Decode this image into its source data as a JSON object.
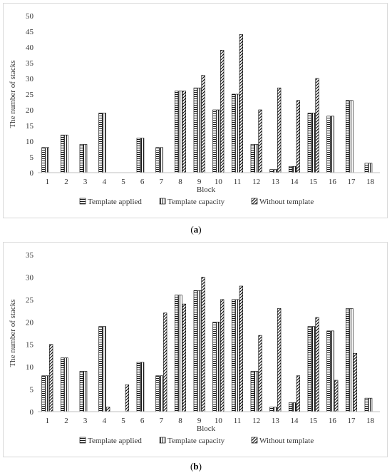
{
  "chart_data": [
    {
      "type": "bar",
      "panel": "a",
      "caption_letter": "a",
      "xlabel": "Block",
      "ylabel": "The number of stacks",
      "ylim": [
        0,
        50
      ],
      "yticks": [
        0,
        5,
        10,
        15,
        20,
        25,
        30,
        35,
        40,
        45,
        50
      ],
      "grid": false,
      "legend_position": "bottom",
      "categories": [
        "1",
        "2",
        "3",
        "4",
        "5",
        "6",
        "7",
        "8",
        "9",
        "10",
        "11",
        "12",
        "13",
        "14",
        "15",
        "16",
        "17",
        "18"
      ],
      "series": [
        {
          "name": "Template applied",
          "pattern": "horizontal",
          "values": [
            8,
            12,
            9,
            19,
            0,
            11,
            8,
            26,
            27,
            20,
            25,
            9,
            1,
            2,
            19,
            18,
            23,
            3
          ]
        },
        {
          "name": "Template capacity",
          "pattern": "vertical",
          "values": [
            8,
            12,
            9,
            19,
            0,
            11,
            8,
            26,
            27,
            20,
            25,
            9,
            1,
            2,
            19,
            18,
            23,
            3
          ]
        },
        {
          "name": "Without template",
          "pattern": "diagonal",
          "values": [
            0,
            0,
            0,
            0,
            0,
            0,
            0,
            26,
            31,
            39,
            44,
            20,
            27,
            23,
            30,
            0,
            0,
            0
          ]
        }
      ]
    },
    {
      "type": "bar",
      "panel": "b",
      "caption_letter": "b",
      "xlabel": "Block",
      "ylabel": "The number of stacks",
      "ylim": [
        0,
        35
      ],
      "yticks": [
        0,
        5,
        10,
        15,
        20,
        25,
        30,
        35
      ],
      "grid": false,
      "legend_position": "bottom",
      "categories": [
        "1",
        "2",
        "3",
        "4",
        "5",
        "6",
        "7",
        "8",
        "9",
        "10",
        "11",
        "12",
        "13",
        "14",
        "15",
        "16",
        "17",
        "18"
      ],
      "series": [
        {
          "name": "Template applied",
          "pattern": "horizontal",
          "values": [
            8,
            12,
            9,
            19,
            0,
            11,
            8,
            26,
            27,
            20,
            25,
            9,
            1,
            2,
            19,
            18,
            23,
            3
          ]
        },
        {
          "name": "Template capacity",
          "pattern": "vertical",
          "values": [
            8,
            12,
            9,
            19,
            0,
            11,
            8,
            26,
            27,
            20,
            25,
            9,
            1,
            2,
            19,
            18,
            23,
            3
          ]
        },
        {
          "name": "Without template",
          "pattern": "diagonal",
          "values": [
            15,
            0,
            0,
            1,
            6,
            0,
            22,
            24,
            30,
            25,
            28,
            17,
            23,
            8,
            21,
            7,
            13,
            0
          ]
        }
      ]
    }
  ]
}
